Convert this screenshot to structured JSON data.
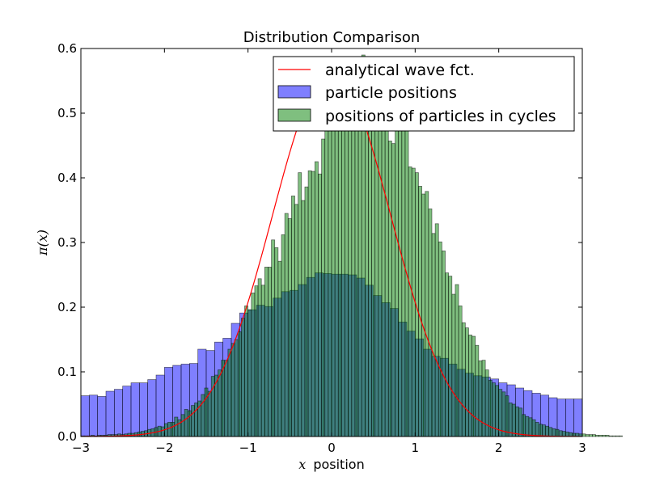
{
  "chart_data": {
    "type": "histogram",
    "title": "Distribution Comparison",
    "xlabel_math": "x",
    "xlabel_text": "position",
    "ylabel": "π(x)",
    "xlim": [
      -3,
      3
    ],
    "ylim": [
      0,
      0.6
    ],
    "xticks": [
      -3,
      -2,
      -1,
      0,
      1,
      2,
      3
    ],
    "xtick_labels": [
      "−3",
      "−2",
      "−1",
      "0",
      "1",
      "2",
      "3"
    ],
    "yticks": [
      0.0,
      0.1,
      0.2,
      0.3,
      0.4,
      0.5,
      0.6
    ],
    "ytick_labels": [
      "0.0",
      "0.1",
      "0.2",
      "0.3",
      "0.4",
      "0.5",
      "0.6"
    ],
    "legend": {
      "position": "upper-right",
      "entries": [
        {
          "label": "analytical wave fct.",
          "kind": "line"
        },
        {
          "label": "particle positions",
          "kind": "patch"
        },
        {
          "label": "positions of particles in cycles",
          "kind": "patch"
        }
      ]
    },
    "series": [
      {
        "name": "particle positions",
        "kind": "histogram",
        "color": "#0000ff",
        "alpha": 0.5,
        "bin_start": -3.0,
        "bin_width": 0.1,
        "values": [
          0.063,
          0.064,
          0.062,
          0.07,
          0.073,
          0.078,
          0.083,
          0.083,
          0.088,
          0.095,
          0.107,
          0.11,
          0.112,
          0.113,
          0.135,
          0.133,
          0.146,
          0.152,
          0.175,
          0.191,
          0.196,
          0.203,
          0.201,
          0.214,
          0.224,
          0.226,
          0.235,
          0.246,
          0.253,
          0.252,
          0.251,
          0.251,
          0.25,
          0.245,
          0.234,
          0.218,
          0.207,
          0.198,
          0.177,
          0.163,
          0.151,
          0.135,
          0.124,
          0.121,
          0.112,
          0.104,
          0.098,
          0.094,
          0.092,
          0.089,
          0.083,
          0.08,
          0.075,
          0.071,
          0.067,
          0.064,
          0.06,
          0.058,
          0.058,
          0.058
        ]
      },
      {
        "name": "positions of particles in cycles",
        "kind": "histogram",
        "color": "#008000",
        "alpha": 0.5,
        "bin_start": -3.0,
        "bin_width": 0.04,
        "values": [
          0.001,
          0.001,
          0.001,
          0.002,
          0.001,
          0.002,
          0.002,
          0.002,
          0.003,
          0.003,
          0.003,
          0.004,
          0.003,
          0.004,
          0.005,
          0.005,
          0.006,
          0.007,
          0.008,
          0.009,
          0.011,
          0.012,
          0.014,
          0.016,
          0.015,
          0.02,
          0.022,
          0.022,
          0.03,
          0.026,
          0.034,
          0.042,
          0.04,
          0.048,
          0.052,
          0.055,
          0.065,
          0.075,
          0.07,
          0.093,
          0.095,
          0.103,
          0.118,
          0.118,
          0.135,
          0.144,
          0.15,
          0.162,
          0.183,
          0.202,
          0.196,
          0.222,
          0.233,
          0.244,
          0.234,
          0.262,
          0.262,
          0.304,
          0.292,
          0.271,
          0.312,
          0.345,
          0.337,
          0.372,
          0.359,
          0.408,
          0.365,
          0.386,
          0.411,
          0.41,
          0.425,
          0.406,
          0.46,
          0.473,
          0.49,
          0.488,
          0.498,
          0.55,
          0.532,
          0.505,
          0.575,
          0.553,
          0.51,
          0.53,
          0.59,
          0.493,
          0.502,
          0.535,
          0.492,
          0.545,
          0.478,
          0.498,
          0.457,
          0.453,
          0.487,
          0.512,
          0.505,
          0.494,
          0.417,
          0.415,
          0.408,
          0.387,
          0.375,
          0.379,
          0.352,
          0.314,
          0.329,
          0.301,
          0.287,
          0.253,
          0.248,
          0.22,
          0.235,
          0.202,
          0.176,
          0.168,
          0.157,
          0.155,
          0.141,
          0.117,
          0.118,
          0.103,
          0.087,
          0.083,
          0.079,
          0.073,
          0.069,
          0.063,
          0.052,
          0.05,
          0.046,
          0.044,
          0.034,
          0.031,
          0.029,
          0.026,
          0.022,
          0.019,
          0.018,
          0.016,
          0.014,
          0.012,
          0.011,
          0.009,
          0.008,
          0.007,
          0.006,
          0.005,
          0.005,
          0.004,
          0.004,
          0.003,
          0.003,
          0.003,
          0.002,
          0.002,
          0.002,
          0.002,
          0.001,
          0.001,
          0.001,
          0.001
        ]
      },
      {
        "name": "analytical wave fct.",
        "kind": "line",
        "color": "#ff0000",
        "function": "exp(-x^2)/sqrt(pi)",
        "samples": 241
      }
    ]
  }
}
